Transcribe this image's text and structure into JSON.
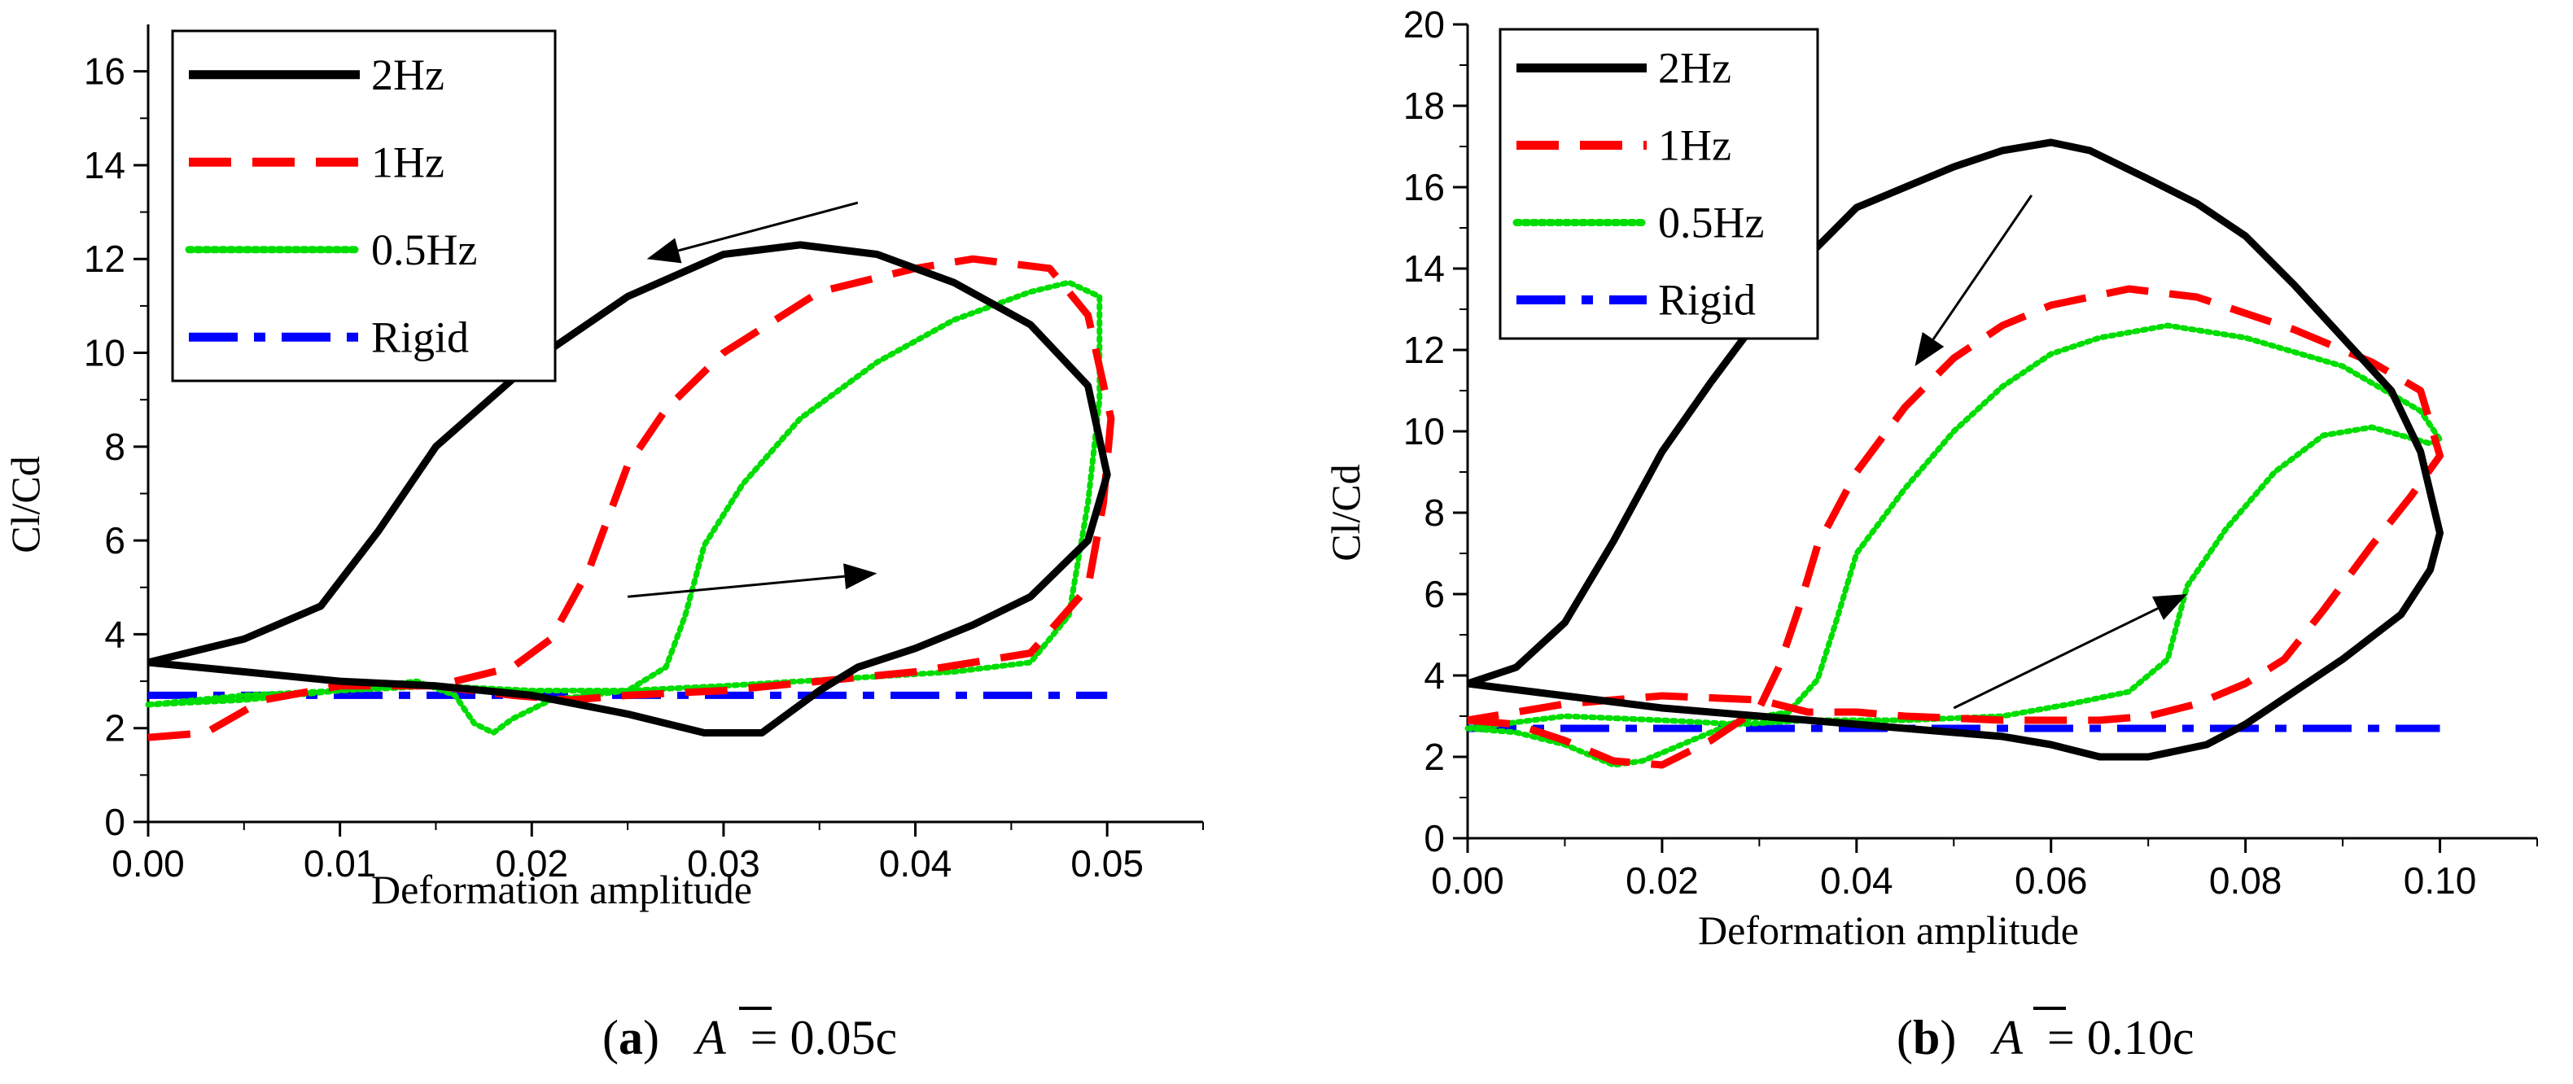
{
  "chart_data": [
    {
      "type": "line",
      "panel_id": "a",
      "caption": {
        "letter": "a",
        "symbol": "A",
        "equals_text": "= 0.05c"
      },
      "xlabel": "Deformation amplitude",
      "ylabel": "Cl/Cd",
      "xlim": [
        0,
        0.055
      ],
      "ylim": [
        0,
        17
      ],
      "xticks": [
        0,
        0.01,
        0.02,
        0.03,
        0.04,
        0.05
      ],
      "xtick_labels": [
        "0.00",
        "0.01",
        "0.02",
        "0.03",
        "0.04",
        "0.05"
      ],
      "yticks": [
        0,
        2,
        4,
        6,
        8,
        10,
        12,
        14,
        16
      ],
      "ytick_labels": [
        "0",
        "2",
        "4",
        "6",
        "8",
        "10",
        "12",
        "14",
        "16"
      ],
      "legend": {
        "position": "top-left"
      },
      "series": [
        {
          "name": "2Hz",
          "color": "#000000",
          "dash": "solid",
          "points": [
            [
              0,
              3.4
            ],
            [
              0.005,
              3.9
            ],
            [
              0.009,
              4.6
            ],
            [
              0.012,
              6.2
            ],
            [
              0.015,
              8.0
            ],
            [
              0.02,
              9.8
            ],
            [
              0.025,
              11.2
            ],
            [
              0.03,
              12.1
            ],
            [
              0.034,
              12.3
            ],
            [
              0.038,
              12.1
            ],
            [
              0.042,
              11.5
            ],
            [
              0.046,
              10.6
            ],
            [
              0.049,
              9.3
            ],
            [
              0.05,
              7.4
            ],
            [
              0.049,
              6.0
            ],
            [
              0.046,
              4.8
            ],
            [
              0.043,
              4.2
            ],
            [
              0.04,
              3.7
            ],
            [
              0.037,
              3.3
            ],
            [
              0.035,
              2.8
            ],
            [
              0.032,
              1.9
            ],
            [
              0.029,
              1.9
            ],
            [
              0.025,
              2.3
            ],
            [
              0.02,
              2.7
            ],
            [
              0.015,
              2.9
            ],
            [
              0.01,
              3.0
            ],
            [
              0.005,
              3.2
            ],
            [
              0,
              3.4
            ]
          ]
        },
        {
          "name": "1Hz",
          "color": "#ff0000",
          "dash": "dashed",
          "points": [
            [
              0,
              1.8
            ],
            [
              0.003,
              1.9
            ],
            [
              0.006,
              2.6
            ],
            [
              0.01,
              2.9
            ],
            [
              0.015,
              2.9
            ],
            [
              0.019,
              3.3
            ],
            [
              0.021,
              3.9
            ],
            [
              0.023,
              5.4
            ],
            [
              0.025,
              7.6
            ],
            [
              0.027,
              8.8
            ],
            [
              0.03,
              10.0
            ],
            [
              0.035,
              11.3
            ],
            [
              0.04,
              11.8
            ],
            [
              0.043,
              12.0
            ],
            [
              0.047,
              11.8
            ],
            [
              0.049,
              10.8
            ],
            [
              0.0502,
              8.6
            ],
            [
              0.0498,
              6.8
            ],
            [
              0.049,
              5.0
            ],
            [
              0.046,
              3.6
            ],
            [
              0.04,
              3.2
            ],
            [
              0.035,
              3.0
            ],
            [
              0.03,
              2.8
            ],
            [
              0.025,
              2.7
            ],
            [
              0.022,
              2.6
            ],
            [
              0.019,
              2.7
            ],
            [
              0.015,
              2.9
            ]
          ]
        },
        {
          "name": "0.5Hz",
          "color": "#00dd00",
          "dash": "dotted",
          "points": [
            [
              0,
              2.5
            ],
            [
              0.005,
              2.6
            ],
            [
              0.01,
              2.8
            ],
            [
              0.014,
              3.0
            ],
            [
              0.016,
              2.7
            ],
            [
              0.017,
              2.1
            ],
            [
              0.018,
              1.9
            ],
            [
              0.019,
              2.2
            ],
            [
              0.021,
              2.6
            ],
            [
              0.025,
              2.8
            ],
            [
              0.027,
              3.3
            ],
            [
              0.028,
              4.4
            ],
            [
              0.029,
              5.9
            ],
            [
              0.031,
              7.2
            ],
            [
              0.034,
              8.6
            ],
            [
              0.038,
              9.8
            ],
            [
              0.042,
              10.7
            ],
            [
              0.046,
              11.3
            ],
            [
              0.048,
              11.5
            ],
            [
              0.0496,
              11.2
            ],
            [
              0.0496,
              9.0
            ],
            [
              0.049,
              6.8
            ],
            [
              0.048,
              4.4
            ],
            [
              0.046,
              3.4
            ],
            [
              0.042,
              3.2
            ],
            [
              0.038,
              3.1
            ],
            [
              0.034,
              3.0
            ],
            [
              0.03,
              2.9
            ],
            [
              0.025,
              2.8
            ],
            [
              0.02,
              2.8
            ],
            [
              0.015,
              2.9
            ],
            [
              0.01,
              2.8
            ],
            [
              0.005,
              2.7
            ],
            [
              0,
              2.5
            ]
          ]
        },
        {
          "name": "Rigid",
          "color": "#0000ff",
          "dash": "dashdot",
          "points": [
            [
              0,
              2.7
            ],
            [
              0.05,
              2.7
            ]
          ]
        }
      ],
      "annotations": [
        {
          "type": "arrow",
          "from": [
            0.037,
            13.2
          ],
          "to": [
            0.026,
            12.0
          ],
          "color": "#000000"
        },
        {
          "type": "arrow",
          "from": [
            0.025,
            4.8
          ],
          "to": [
            0.038,
            5.3
          ],
          "color": "#000000"
        }
      ]
    },
    {
      "type": "line",
      "panel_id": "b",
      "caption": {
        "letter": "b",
        "symbol": "A",
        "equals_text": "= 0.10c"
      },
      "xlabel": "Deformation amplitude",
      "ylabel": "Cl/Cd",
      "xlim": [
        0,
        0.11
      ],
      "ylim": [
        0,
        20
      ],
      "xticks": [
        0,
        0.02,
        0.04,
        0.06,
        0.08,
        0.1
      ],
      "xtick_labels": [
        "0.00",
        "0.02",
        "0.04",
        "0.06",
        "0.08",
        "0.10"
      ],
      "yticks": [
        0,
        2,
        4,
        6,
        8,
        10,
        12,
        14,
        16,
        18,
        20
      ],
      "ytick_labels": [
        "0",
        "2",
        "4",
        "6",
        "8",
        "10",
        "12",
        "14",
        "16",
        "18",
        "20"
      ],
      "legend": {
        "position": "top-left"
      },
      "series": [
        {
          "name": "2Hz",
          "color": "#000000",
          "dash": "solid",
          "points": [
            [
              0,
              3.8
            ],
            [
              0.005,
              4.2
            ],
            [
              0.01,
              5.3
            ],
            [
              0.015,
              7.3
            ],
            [
              0.02,
              9.5
            ],
            [
              0.025,
              11.2
            ],
            [
              0.03,
              12.8
            ],
            [
              0.035,
              14.3
            ],
            [
              0.04,
              15.5
            ],
            [
              0.05,
              16.5
            ],
            [
              0.055,
              16.9
            ],
            [
              0.06,
              17.1
            ],
            [
              0.064,
              16.9
            ],
            [
              0.07,
              16.2
            ],
            [
              0.075,
              15.6
            ],
            [
              0.08,
              14.8
            ],
            [
              0.085,
              13.6
            ],
            [
              0.09,
              12.3
            ],
            [
              0.095,
              11.0
            ],
            [
              0.098,
              9.5
            ],
            [
              0.1,
              7.5
            ],
            [
              0.099,
              6.6
            ],
            [
              0.096,
              5.5
            ],
            [
              0.09,
              4.4
            ],
            [
              0.085,
              3.6
            ],
            [
              0.08,
              2.8
            ],
            [
              0.076,
              2.3
            ],
            [
              0.07,
              2.0
            ],
            [
              0.065,
              2.0
            ],
            [
              0.06,
              2.3
            ],
            [
              0.055,
              2.5
            ],
            [
              0.05,
              2.6
            ],
            [
              0.04,
              2.8
            ],
            [
              0.03,
              3.0
            ],
            [
              0.02,
              3.2
            ],
            [
              0.01,
              3.5
            ],
            [
              0,
              3.8
            ]
          ]
        },
        {
          "name": "1Hz",
          "color": "#ff0000",
          "dash": "dashed",
          "points": [
            [
              0,
              2.9
            ],
            [
              0.005,
              2.8
            ],
            [
              0.01,
              2.4
            ],
            [
              0.015,
              1.9
            ],
            [
              0.02,
              1.8
            ],
            [
              0.025,
              2.4
            ],
            [
              0.03,
              3.2
            ],
            [
              0.032,
              4.2
            ],
            [
              0.034,
              5.6
            ],
            [
              0.036,
              7.2
            ],
            [
              0.04,
              9.0
            ],
            [
              0.045,
              10.6
            ],
            [
              0.05,
              11.8
            ],
            [
              0.055,
              12.6
            ],
            [
              0.06,
              13.1
            ],
            [
              0.068,
              13.5
            ],
            [
              0.075,
              13.3
            ],
            [
              0.085,
              12.5
            ],
            [
              0.093,
              11.7
            ],
            [
              0.098,
              11.0
            ],
            [
              0.1,
              9.4
            ],
            [
              0.097,
              8.4
            ],
            [
              0.093,
              7.2
            ],
            [
              0.088,
              5.6
            ],
            [
              0.084,
              4.4
            ],
            [
              0.08,
              3.8
            ],
            [
              0.075,
              3.3
            ],
            [
              0.07,
              3.0
            ],
            [
              0.065,
              2.9
            ],
            [
              0.055,
              2.9
            ],
            [
              0.045,
              3.0
            ],
            [
              0.04,
              3.1
            ],
            [
              0.035,
              3.1
            ],
            [
              0.03,
              3.4
            ],
            [
              0.02,
              3.5
            ],
            [
              0.01,
              3.3
            ],
            [
              0,
              2.9
            ]
          ]
        },
        {
          "name": "0.5Hz",
          "color": "#00dd00",
          "dash": "dotted",
          "points": [
            [
              0,
              2.7
            ],
            [
              0.005,
              2.6
            ],
            [
              0.01,
              2.3
            ],
            [
              0.015,
              1.8
            ],
            [
              0.018,
              1.9
            ],
            [
              0.022,
              2.3
            ],
            [
              0.025,
              2.6
            ],
            [
              0.028,
              2.9
            ],
            [
              0.033,
              3.1
            ],
            [
              0.036,
              3.9
            ],
            [
              0.038,
              5.4
            ],
            [
              0.04,
              7.0
            ],
            [
              0.045,
              8.6
            ],
            [
              0.05,
              10.0
            ],
            [
              0.055,
              11.1
            ],
            [
              0.06,
              11.9
            ],
            [
              0.065,
              12.3
            ],
            [
              0.072,
              12.6
            ],
            [
              0.08,
              12.3
            ],
            [
              0.09,
              11.6
            ],
            [
              0.098,
              10.5
            ],
            [
              0.1,
              9.8
            ],
            [
              0.099,
              9.7
            ],
            [
              0.093,
              10.1
            ],
            [
              0.088,
              9.9
            ],
            [
              0.083,
              9.0
            ],
            [
              0.078,
              7.6
            ],
            [
              0.074,
              6.2
            ],
            [
              0.072,
              4.4
            ],
            [
              0.068,
              3.6
            ],
            [
              0.062,
              3.3
            ],
            [
              0.055,
              3.0
            ],
            [
              0.045,
              2.9
            ],
            [
              0.035,
              2.9
            ],
            [
              0.028,
              2.8
            ],
            [
              0.02,
              2.9
            ],
            [
              0.01,
              3.0
            ],
            [
              0,
              2.7
            ]
          ]
        },
        {
          "name": "Rigid",
          "color": "#0000ff",
          "dash": "dashdot",
          "points": [
            [
              0,
              2.7
            ],
            [
              0.1,
              2.7
            ]
          ]
        }
      ],
      "annotations": [
        {
          "type": "arrow",
          "from": [
            0.058,
            15.8
          ],
          "to": [
            0.046,
            11.6
          ],
          "color": "#000000"
        },
        {
          "type": "arrow",
          "from": [
            0.05,
            3.2
          ],
          "to": [
            0.074,
            6.0
          ],
          "color": "#000000"
        }
      ]
    }
  ]
}
